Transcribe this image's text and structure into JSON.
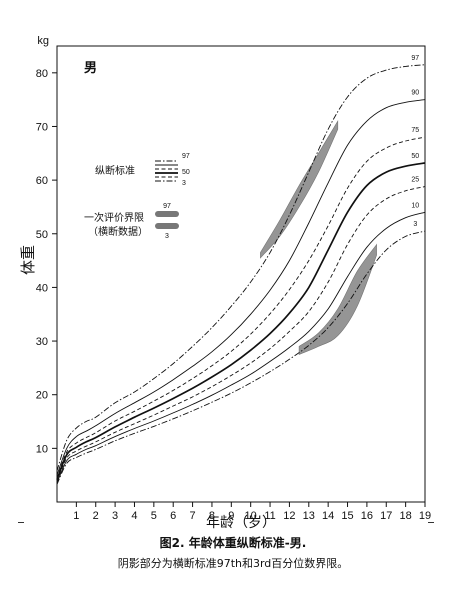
{
  "chart_data": {
    "type": "line",
    "y_unit": "kg",
    "ylabel": "体重",
    "xlabel": "年龄（岁）",
    "sex_label": "男",
    "xlim": [
      0,
      19
    ],
    "ylim": [
      0,
      85
    ],
    "x_ticks": [
      1,
      2,
      3,
      4,
      5,
      6,
      7,
      8,
      9,
      10,
      11,
      12,
      13,
      14,
      15,
      16,
      17,
      18,
      19
    ],
    "y_ticks": [
      10,
      20,
      30,
      40,
      50,
      60,
      70,
      80
    ],
    "x": [
      0,
      0.5,
      1,
      1.5,
      2,
      3,
      4,
      5,
      6,
      7,
      8,
      9,
      10,
      11,
      12,
      13,
      14,
      15,
      16,
      17,
      18,
      19
    ],
    "series": [
      {
        "name": "97",
        "style": "dashdot",
        "values": [
          5.8,
          11.5,
          13.8,
          15.0,
          15.8,
          18.5,
          20.5,
          23.0,
          25.8,
          29.0,
          32.5,
          36.5,
          41.0,
          46.5,
          53.5,
          61.5,
          69.5,
          75.5,
          79.0,
          80.5,
          81.2,
          81.5
        ]
      },
      {
        "name": "90",
        "style": "solid",
        "values": [
          5.0,
          10.0,
          12.2,
          13.2,
          14.2,
          16.5,
          18.5,
          20.5,
          22.8,
          25.3,
          28.0,
          31.2,
          35.0,
          39.5,
          45.0,
          52.0,
          59.5,
          66.5,
          71.0,
          73.5,
          74.5,
          75.0
        ]
      },
      {
        "name": "75",
        "style": "dashed",
        "values": [
          4.5,
          9.3,
          11.0,
          12.0,
          12.9,
          15.1,
          16.9,
          18.8,
          20.8,
          23.0,
          25.4,
          28.1,
          31.3,
          35.1,
          39.6,
          45.0,
          51.5,
          58.5,
          63.5,
          66.0,
          67.3,
          68.0
        ]
      },
      {
        "name": "50",
        "style": "solid-bold",
        "values": [
          4.2,
          8.8,
          10.2,
          11.2,
          12.0,
          14.0,
          15.8,
          17.5,
          19.3,
          21.2,
          23.3,
          25.6,
          28.3,
          31.4,
          35.2,
          40.0,
          47.0,
          54.0,
          59.0,
          61.5,
          62.6,
          63.2
        ]
      },
      {
        "name": "25",
        "style": "dashed",
        "values": [
          3.9,
          8.2,
          9.5,
          10.4,
          11.2,
          13.0,
          14.6,
          16.2,
          17.9,
          19.6,
          21.5,
          23.6,
          25.9,
          28.6,
          31.8,
          35.5,
          41.0,
          48.0,
          53.5,
          56.5,
          58.0,
          58.8
        ]
      },
      {
        "name": "10",
        "style": "solid",
        "values": [
          3.6,
          7.7,
          8.9,
          9.8,
          10.5,
          12.2,
          13.7,
          15.1,
          16.6,
          18.2,
          19.9,
          21.8,
          23.8,
          26.2,
          28.8,
          31.8,
          36.0,
          42.0,
          47.5,
          51.0,
          53.0,
          54.0
        ]
      },
      {
        "name": "3",
        "style": "dashdot",
        "values": [
          3.3,
          7.2,
          8.3,
          9.1,
          9.8,
          11.4,
          12.8,
          14.1,
          15.5,
          17.0,
          18.6,
          20.3,
          22.2,
          24.3,
          26.6,
          29.2,
          32.5,
          37.0,
          42.5,
          47.0,
          49.5,
          50.5
        ]
      }
    ],
    "shaded_bands": [
      {
        "x": [
          10.5,
          11.5,
          12.5,
          13.5,
          14.5
        ],
        "upper": [
          46.5,
          52.5,
          59.0,
          65.0,
          71.0
        ],
        "lower": [
          45.5,
          49.5,
          55.0,
          61.5,
          69.5
        ]
      },
      {
        "x": [
          12.5,
          13.5,
          14.5,
          15.5,
          16.5
        ],
        "upper": [
          29.0,
          31.5,
          36.0,
          43.0,
          48.0
        ],
        "lower": [
          27.5,
          29.0,
          31.0,
          36.5,
          46.0
        ]
      }
    ],
    "legend": {
      "longitudinal_label": "纵断标准",
      "longitudinal_items": [
        "97",
        "50",
        "3"
      ],
      "cross_label_line1": "一次评价界限",
      "cross_label_line2": "（横断数据）",
      "cross_items": [
        "97",
        "3"
      ]
    }
  },
  "caption": {
    "title": "图2.  年龄体重纵断标准-男.",
    "note": "阴影部分为横断标准97th和3rd百分位数界限。"
  }
}
